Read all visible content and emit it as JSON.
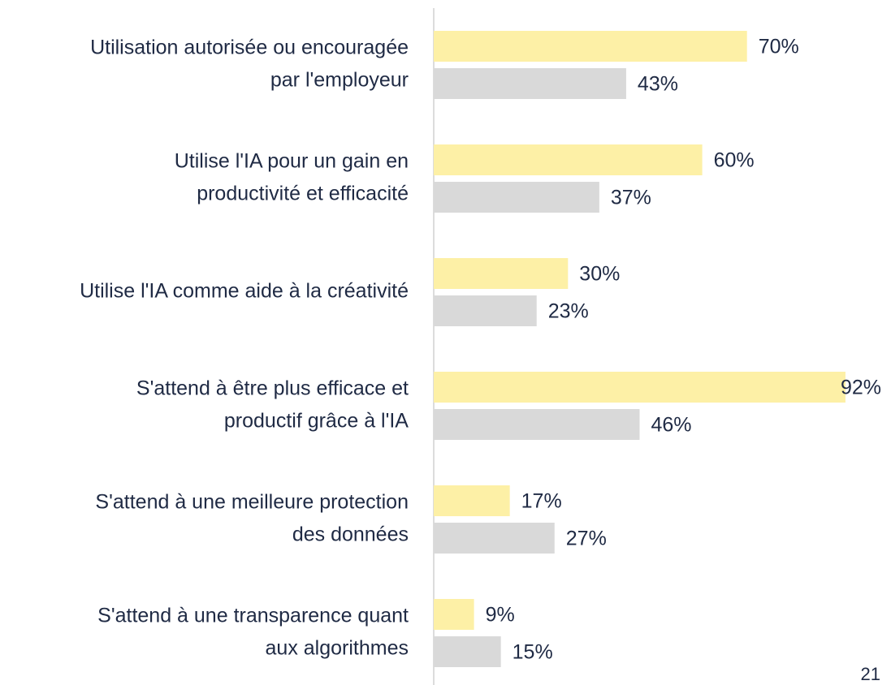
{
  "chart_data": {
    "type": "bar",
    "orientation": "horizontal",
    "categories": [
      [
        "Utilisation autorisée ou encouragée",
        "par l'employeur"
      ],
      [
        "Utilise l'IA pour un gain en",
        "productivité et efficacité"
      ],
      [
        "Utilise l'IA comme aide à la créativité"
      ],
      [
        "S'attend à être plus efficace et",
        "productif grâce à l'IA"
      ],
      [
        "S'attend à une meilleure protection",
        "des données"
      ],
      [
        "S'attend à une transparence quant",
        "aux algorithmes"
      ]
    ],
    "series": [
      {
        "color": "#fdf0a6",
        "values": [
          70,
          60,
          30,
          92,
          17,
          9
        ],
        "value_labels": [
          "70%",
          "60%",
          "30%",
          "92%",
          "17%",
          "9%"
        ]
      },
      {
        "color": "#d9d9d9",
        "values": [
          43,
          37,
          23,
          46,
          27,
          15
        ],
        "value_labels": [
          "43%",
          "37%",
          "23%",
          "46%",
          "27%",
          "15%"
        ]
      }
    ],
    "xlim": [
      0,
      100
    ],
    "page_number": "21"
  }
}
